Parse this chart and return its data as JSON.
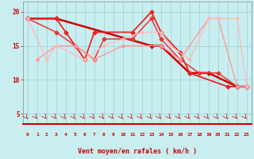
{
  "xlabel": "Vent moyen/en rafales ( km/h )",
  "xlim": [
    -0.5,
    23.5
  ],
  "ylim": [
    3.5,
    21.5
  ],
  "yticks": [
    5,
    10,
    15,
    20
  ],
  "xticks": [
    0,
    1,
    2,
    3,
    4,
    5,
    6,
    7,
    8,
    9,
    10,
    11,
    12,
    13,
    14,
    15,
    16,
    17,
    18,
    19,
    20,
    21,
    22,
    23
  ],
  "background_color": "#c8eef0",
  "grid_color": "#9dcfcf",
  "lines": [
    {
      "x": [
        0,
        3,
        13,
        14,
        17,
        19,
        22,
        23
      ],
      "y": [
        19,
        19,
        15,
        15,
        11,
        11,
        9,
        9
      ],
      "color": "#cc0000",
      "lw": 1.8,
      "marker": "D",
      "ms": 2.5
    },
    {
      "x": [
        0,
        3,
        4,
        6,
        7,
        11,
        13,
        14,
        16,
        17,
        21,
        23
      ],
      "y": [
        19,
        19,
        17,
        13,
        17,
        17,
        20,
        17,
        14,
        11,
        9,
        9
      ],
      "color": "#ee2222",
      "lw": 1.3,
      "marker": "D",
      "ms": 2.5
    },
    {
      "x": [
        0,
        3,
        5,
        7,
        8,
        11,
        13,
        14,
        16,
        18,
        20,
        22,
        23
      ],
      "y": [
        19,
        17,
        15,
        13,
        16,
        16,
        19,
        16,
        13,
        11,
        11,
        9,
        9
      ],
      "color": "#ee3333",
      "lw": 1.1,
      "marker": "D",
      "ms": 2.5
    },
    {
      "x": [
        1,
        3,
        5,
        7,
        10,
        14,
        16,
        19,
        20,
        22,
        23
      ],
      "y": [
        13,
        15,
        15,
        13,
        15,
        15,
        13,
        19,
        19,
        9,
        9
      ],
      "color": "#ff9999",
      "lw": 1.0,
      "marker": "D",
      "ms": 2.0
    },
    {
      "x": [
        0,
        2,
        3,
        6,
        8,
        10,
        12,
        14,
        15,
        17,
        19,
        20,
        22,
        23
      ],
      "y": [
        19,
        13,
        15,
        13,
        15,
        16,
        17,
        17,
        15,
        13,
        19,
        19,
        19,
        9
      ],
      "color": "#ffbbbb",
      "lw": 1.0,
      "marker": "D",
      "ms": 2.0
    }
  ]
}
